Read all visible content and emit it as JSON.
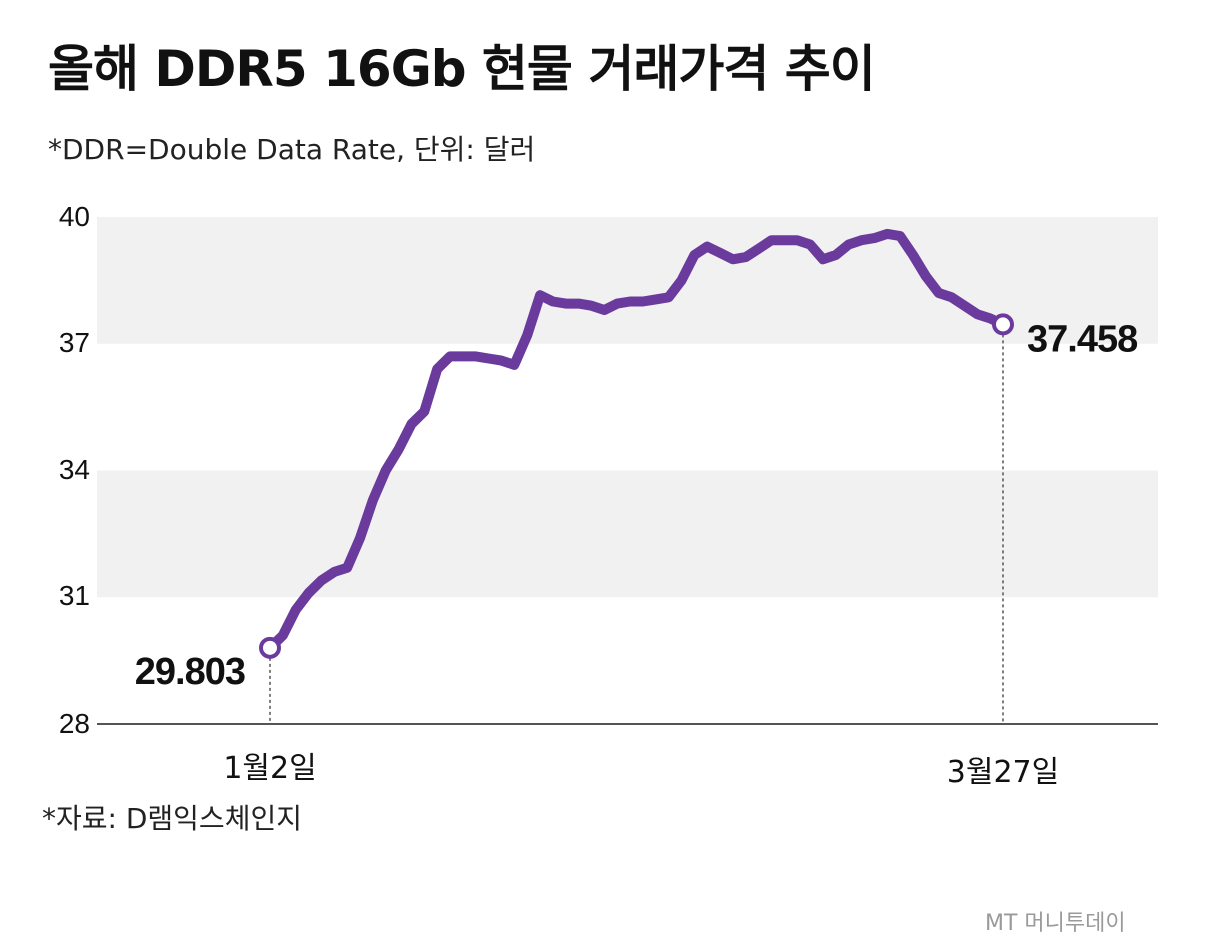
{
  "header": {
    "title": "올해 DDR5 16Gb 현물 거래가격 추이",
    "subtitle": "*DDR=Double Data Rate, 단위: 달러"
  },
  "footer": {
    "source": "*자료: D램익스체인지",
    "logo": "MT 머니투데이"
  },
  "colors": {
    "line": "#6a3a9c",
    "band": "#f1f1f1",
    "axis": "#555555"
  },
  "chart_data": {
    "type": "line",
    "title": "올해 DDR5 16Gb 현물 거래가격 추이",
    "xlabel": "",
    "ylabel": "",
    "ylim": [
      28,
      40
    ],
    "yticks": [
      "40",
      "37",
      "34",
      "31",
      "28"
    ],
    "grid": "alternating horizontal bands",
    "legend": "none",
    "x_labels": {
      "start": "1월2일",
      "end": "3월27일"
    },
    "start_label": "29.803",
    "end_label": "37.458",
    "series": [
      {
        "x": [
          0,
          1,
          2,
          3,
          4,
          5,
          6,
          7,
          8,
          9,
          10,
          11,
          12,
          13,
          14,
          15,
          16,
          17,
          18,
          19,
          20,
          21,
          22,
          23,
          24,
          25,
          26,
          27,
          28,
          29,
          30,
          31,
          32,
          33,
          34,
          35,
          36,
          37,
          38,
          39,
          40,
          41,
          42,
          43,
          44,
          45,
          46,
          47,
          48,
          49,
          50,
          51,
          52,
          53,
          54,
          55,
          56,
          57
        ],
        "values": [
          29.803,
          30.1,
          30.7,
          31.1,
          31.4,
          31.6,
          31.7,
          32.4,
          33.3,
          34.0,
          34.5,
          35.1,
          35.4,
          36.4,
          36.7,
          36.7,
          36.7,
          36.65,
          36.6,
          36.5,
          37.2,
          38.15,
          38.0,
          37.95,
          37.95,
          37.9,
          37.8,
          37.95,
          38.0,
          38.0,
          38.05,
          38.1,
          38.5,
          39.1,
          39.3,
          39.15,
          39.0,
          39.05,
          39.25,
          39.45,
          39.45,
          39.45,
          39.35,
          39.0,
          39.1,
          39.35,
          39.45,
          39.5,
          39.6,
          39.55,
          39.1,
          38.6,
          38.2,
          38.1,
          37.9,
          37.7,
          37.6,
          37.458
        ]
      }
    ]
  }
}
